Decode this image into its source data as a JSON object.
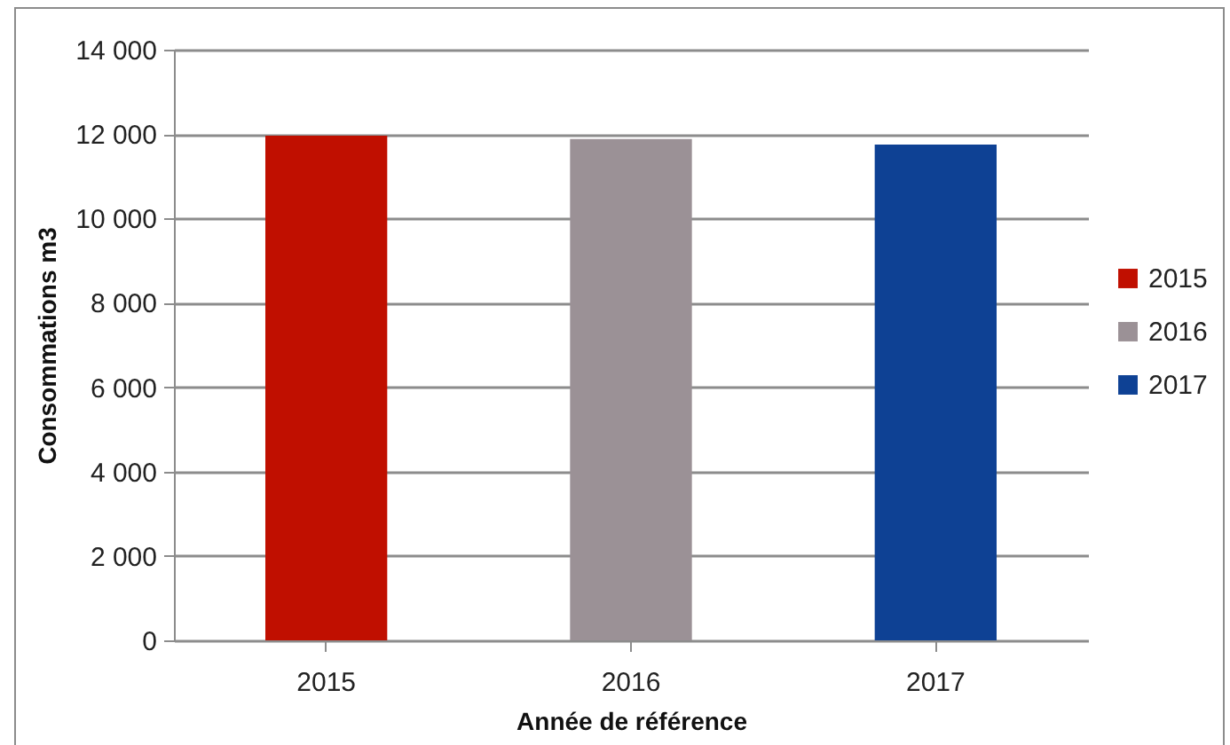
{
  "chart_data": {
    "type": "bar",
    "xlabel": "Année de référence",
    "ylabel": "Consommations m3",
    "categories": [
      "2015",
      "2016",
      "2017"
    ],
    "stacked": true,
    "series": [
      {
        "name": "2015",
        "color": "#c00f00",
        "values": [
          11960,
          null,
          null
        ]
      },
      {
        "name": "2016",
        "color": "#9b9196",
        "values": [
          null,
          11880,
          null
        ]
      },
      {
        "name": "2017",
        "color": "#0e4194",
        "values": [
          null,
          null,
          11750
        ]
      }
    ],
    "ylim": [
      0,
      14000
    ],
    "yticks": [
      {
        "value": 0,
        "label": "0"
      },
      {
        "value": 2000,
        "label": "2 000"
      },
      {
        "value": 4000,
        "label": "4 000"
      },
      {
        "value": 6000,
        "label": "6 000"
      },
      {
        "value": 8000,
        "label": "8 000"
      },
      {
        "value": 10000,
        "label": "10 000"
      },
      {
        "value": 12000,
        "label": "12 000"
      },
      {
        "value": 14000,
        "label": "14 000"
      }
    ],
    "grid": "y",
    "legend": "right"
  }
}
